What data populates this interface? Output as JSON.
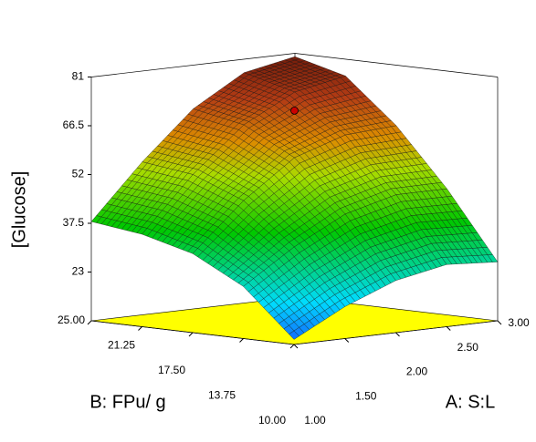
{
  "chart_data": {
    "type": "surface",
    "zlabel": "[Glucose]",
    "xlabel": "A: S:L",
    "ylabel": "B: FPu/ g",
    "x": [
      1,
      1.5,
      2,
      2.5,
      3
    ],
    "y": [
      10,
      13.75,
      17.5,
      21.25,
      25
    ],
    "z": [
      [
        10,
        18,
        24,
        27,
        26
      ],
      [
        24,
        34,
        42,
        46,
        46
      ],
      [
        32,
        46,
        57,
        62,
        63
      ],
      [
        36,
        52,
        65,
        73,
        76
      ],
      [
        38,
        54,
        68,
        77,
        80
      ]
    ],
    "xlim": [
      1,
      3
    ],
    "ylim": [
      10,
      25
    ],
    "zlim": [
      8.5,
      81
    ],
    "xticks": [
      {
        "value": 1,
        "label": "1.00"
      },
      {
        "value": 1.5,
        "label": "1.50"
      },
      {
        "value": 2,
        "label": "2.00"
      },
      {
        "value": 2.5,
        "label": "2.50"
      },
      {
        "value": 3,
        "label": "3.00"
      }
    ],
    "yticks": [
      {
        "value": 10,
        "label": "10.00"
      },
      {
        "value": 13.75,
        "label": "13.75"
      },
      {
        "value": 17.5,
        "label": "17.50"
      },
      {
        "value": 21.25,
        "label": "21.25"
      },
      {
        "value": 25,
        "label": "25.00"
      }
    ],
    "zticks": [
      23,
      37.5,
      52,
      66.5,
      81
    ],
    "points": [
      {
        "x": 2,
        "y": 17.5,
        "z": 71,
        "color": "#cc0000"
      }
    ],
    "floor_color": "#ffff00"
  }
}
